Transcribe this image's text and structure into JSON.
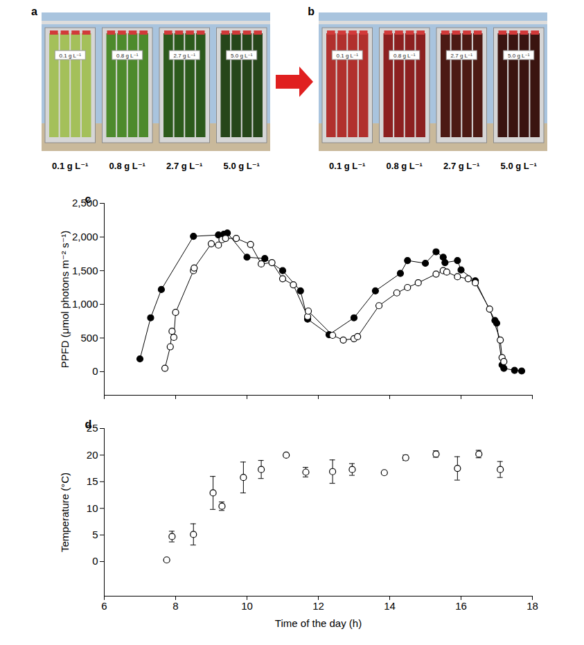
{
  "photo_panels": [
    {
      "panel_label": "a",
      "labels": [
        "0.1 g L⁻¹",
        "0.8 g L⁻¹",
        "2.7 g L⁻¹",
        "5.0 g L⁻¹"
      ],
      "colors": [
        "#a4c05a",
        "#4d8a2c",
        "#2c5a1c",
        "#26461a"
      ]
    },
    {
      "panel_label": "b",
      "labels": [
        "0.1 g L⁻¹",
        "0.8 g L⁻¹",
        "2.7 g L⁻¹",
        "5.0 g L⁻¹"
      ],
      "colors": [
        "#b1302d",
        "#8c2020",
        "#4c1a14",
        "#3a1410"
      ]
    }
  ],
  "chart_data": [
    {
      "type": "line",
      "panel_label": "c",
      "x_label": null,
      "y_label": "PPFD (μmol photons m⁻² s⁻¹)",
      "xlim": [
        6,
        18
      ],
      "xticks": [
        6,
        8,
        10,
        12,
        14,
        16,
        18
      ],
      "ylim": [
        -350,
        2500
      ],
      "yticks": [
        0,
        500,
        1000,
        1500,
        2000,
        2500
      ],
      "tick_labels": "y",
      "series": [
        {
          "color": "#000000",
          "marker": "filled circle",
          "x": [
            7.0,
            7.3,
            7.6,
            8.5,
            9.2,
            9.35,
            9.45,
            10.0,
            10.5,
            11.0,
            11.5,
            11.7,
            12.3,
            13.0,
            13.6,
            14.3,
            14.5,
            15.0,
            15.3,
            15.5,
            15.55,
            15.9,
            16.0,
            16.4,
            16.95,
            17.0,
            17.15,
            17.2,
            17.5,
            17.7
          ],
          "values": [
            190,
            800,
            1220,
            2010,
            2030,
            2040,
            2060,
            1700,
            1680,
            1500,
            1200,
            780,
            550,
            800,
            1200,
            1460,
            1650,
            1610,
            1780,
            1700,
            1620,
            1650,
            1510,
            1350,
            760,
            720,
            100,
            50,
            20,
            10
          ]
        },
        {
          "color": "#000000",
          "marker": "open circle",
          "x": [
            7.7,
            7.85,
            7.9,
            7.95,
            8.0,
            8.5,
            8.52,
            9.0,
            9.2,
            9.3,
            9.4,
            9.7,
            10.1,
            10.4,
            10.7,
            11.0,
            11.3,
            11.7,
            11.72,
            12.4,
            12.7,
            13.0,
            13.1,
            13.7,
            14.2,
            14.5,
            14.8,
            15.3,
            15.5,
            15.6,
            15.9,
            16.2,
            16.4,
            16.8,
            17.1,
            17.15,
            17.2
          ],
          "values": [
            50,
            370,
            600,
            510,
            880,
            1500,
            1540,
            1900,
            1880,
            1960,
            1980,
            1980,
            1890,
            1600,
            1620,
            1380,
            1290,
            820,
            900,
            540,
            470,
            490,
            520,
            980,
            1170,
            1250,
            1320,
            1450,
            1500,
            1480,
            1410,
            1380,
            1320,
            930,
            470,
            210,
            150
          ]
        }
      ]
    },
    {
      "type": "scatter",
      "panel_label": "d",
      "x_label": "Time of the day (h)",
      "y_label": "Temperature (°C)",
      "xlim": [
        6,
        18
      ],
      "xticks": [
        6,
        8,
        10,
        12,
        14,
        16,
        18
      ],
      "ylim": [
        -6.5,
        25
      ],
      "yticks": [
        0,
        5,
        10,
        15,
        20,
        25
      ],
      "series": [
        {
          "color": "#000000",
          "marker": "open circle",
          "x": [
            7.75,
            7.9,
            8.5,
            9.05,
            9.3,
            9.9,
            10.4,
            11.1,
            11.65,
            12.4,
            12.95,
            13.85,
            14.45,
            15.3,
            15.9,
            16.5,
            17.1
          ],
          "values": [
            0.3,
            4.7,
            5.1,
            12.9,
            10.4,
            15.8,
            17.3,
            20.0,
            16.8,
            16.9,
            17.3,
            16.7,
            19.5,
            20.2,
            17.5,
            20.2,
            17.3
          ],
          "errors": [
            0,
            1.0,
            2.0,
            3.1,
            0.8,
            2.9,
            1.7,
            0,
            0.9,
            2.2,
            1.1,
            0,
            0.5,
            0.6,
            2.2,
            0.7,
            1.5
          ]
        }
      ]
    }
  ]
}
